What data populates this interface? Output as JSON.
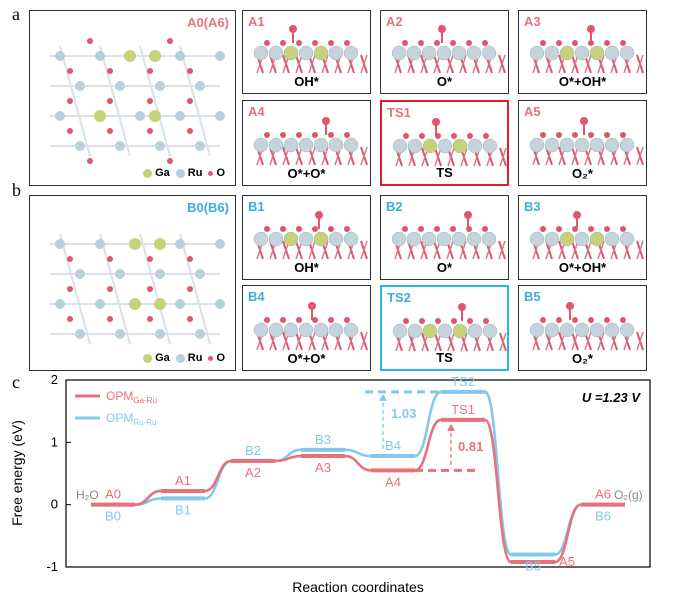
{
  "panel_labels": {
    "a": "a",
    "b": "b",
    "c": "c"
  },
  "colors": {
    "ga_ru": "#e8727a",
    "ru_ru": "#84c8ec",
    "ts1_border": "#e11d2a",
    "ts2_border": "#29b6e3",
    "ga": "#c6d27a",
    "ru": "#b9cfd9",
    "o": "#e0566d"
  },
  "row_a": {
    "main_tag": "A0(A6)",
    "legend": {
      "ga": "Ga",
      "ru": "Ru",
      "o": "O"
    },
    "panels": [
      {
        "tag": "A1",
        "label": "OH*"
      },
      {
        "tag": "A2",
        "label": "O*"
      },
      {
        "tag": "A3",
        "label": "O*+OH*"
      },
      {
        "tag": "A4",
        "label": "O*+O*"
      },
      {
        "tag": "TS1",
        "label": "TS"
      },
      {
        "tag": "A5",
        "label": "O₂*"
      }
    ]
  },
  "row_b": {
    "main_tag": "B0(B6)",
    "legend": {
      "ga": "Ga",
      "ru": "Ru",
      "o": "O"
    },
    "panels": [
      {
        "tag": "B1",
        "label": "OH*"
      },
      {
        "tag": "B2",
        "label": "O*"
      },
      {
        "tag": "B3",
        "label": "O*+OH*"
      },
      {
        "tag": "B4",
        "label": "O*+O*"
      },
      {
        "tag": "TS2",
        "label": "TS"
      },
      {
        "tag": "B5",
        "label": "O₂*"
      }
    ]
  },
  "chart_data": {
    "type": "line",
    "xlabel": "Reaction coordinates",
    "ylabel": "Free energy (eV)",
    "ylim": [
      -1,
      2
    ],
    "yticks": [
      -1,
      0,
      1,
      2
    ],
    "annotation_u": "U =1.23 V",
    "legend": [
      {
        "main": "OPM",
        "sub": "Ga-Ru"
      },
      {
        "main": "OPM",
        "sub": "Ru-Ru"
      }
    ],
    "start_label": "H₂O",
    "end_label": "O₂(g)",
    "series": [
      {
        "name": "OPM_Ga-Ru",
        "color": "#e8727a",
        "states": [
          "A0",
          "A1",
          "A2",
          "A3",
          "A4",
          "TS1",
          "A5",
          "A6"
        ],
        "values": [
          0.0,
          0.22,
          0.7,
          0.78,
          0.55,
          1.36,
          -0.92,
          0.0
        ]
      },
      {
        "name": "OPM_Ru-Ru",
        "color": "#84c8ec",
        "states": [
          "B0",
          "B1",
          "B2",
          "B3",
          "B4",
          "TS2",
          "B5",
          "B6"
        ],
        "values": [
          0.0,
          0.1,
          0.7,
          0.88,
          0.78,
          1.81,
          -0.8,
          0.0
        ]
      }
    ],
    "barriers": [
      {
        "label": "1.03",
        "value": 1.03
      },
      {
        "label": "0.81",
        "value": 0.81
      }
    ]
  }
}
